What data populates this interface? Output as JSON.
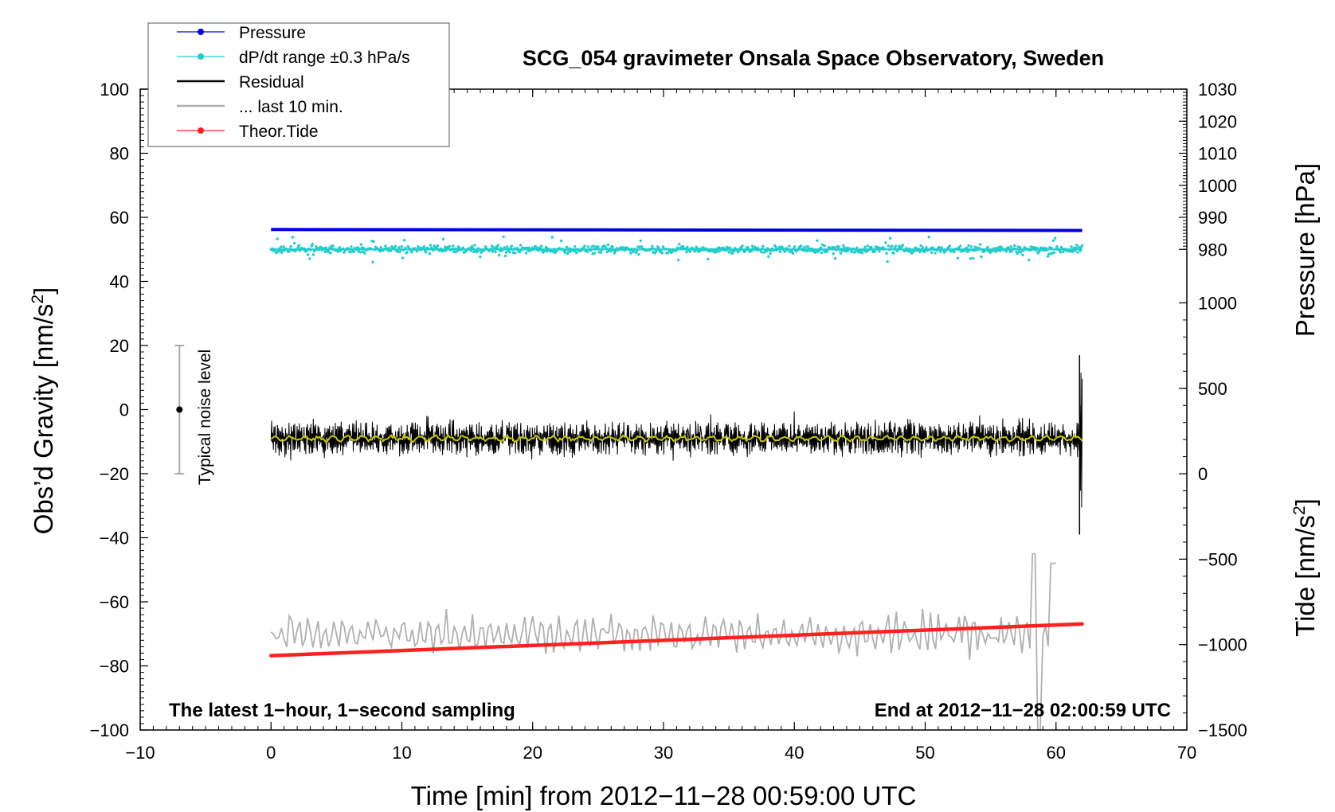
{
  "chart_data": {
    "type": "line",
    "title": "SCG_054 gravimeter Onsala Space Observatory, Sweden",
    "xlabel": "Time [min] from 2012−11−28 00:59:00 UTC",
    "ylabel_left": "Obs’d Gravity [nm/s",
    "ylabel_left_sup": "2",
    "ylabel_left_end": "]",
    "ylabel_right_top": "Pressure [hPa]",
    "ylabel_right_bottom": "Tide [nm/s",
    "ylabel_right_bottom_sup": "2",
    "ylabel_right_bottom_end": "]",
    "xlim": [
      -10,
      70
    ],
    "ylim_left": [
      -100,
      100
    ],
    "x_ticks": [
      "−10",
      "0",
      "10",
      "20",
      "30",
      "40",
      "50",
      "60",
      "70"
    ],
    "x_tick_values": [
      -10,
      0,
      10,
      20,
      30,
      40,
      50,
      60,
      70
    ],
    "y_left_ticks": [
      "100",
      "80",
      "60",
      "40",
      "20",
      "0",
      "−20",
      "−40",
      "−60",
      "−80",
      "−100"
    ],
    "y_left_tick_values": [
      100,
      80,
      60,
      40,
      20,
      0,
      -20,
      -40,
      -60,
      -80,
      -100
    ],
    "pressure_axis": {
      "ticks": [
        "1030",
        "1020",
        "1010",
        "1000",
        "990",
        "980"
      ],
      "values": [
        1030,
        1020,
        1010,
        1000,
        990,
        980
      ],
      "range": [
        980,
        1030
      ]
    },
    "tide_axis": {
      "ticks": [
        "1000",
        "500",
        "0",
        "−500",
        "−1000",
        "−1500"
      ],
      "values": [
        1000,
        500,
        0,
        -500,
        -1000,
        -1500
      ],
      "range": [
        -1500,
        1000
      ]
    },
    "legend": {
      "position": "top-left",
      "entries": [
        {
          "label": "Pressure",
          "color": "#0000dd",
          "marker": "dot"
        },
        {
          "label": "dP/dt range ±0.3 hPa/s",
          "color": "#22cccc",
          "marker": "dot"
        },
        {
          "label": "Residual",
          "color": "#000000",
          "marker": "line"
        },
        {
          "label": "... last 10 min.",
          "color": "#b0b0b0",
          "marker": "line"
        },
        {
          "label": "Theor.Tide",
          "color": "#ff2020",
          "marker": "dot"
        }
      ]
    },
    "series": [
      {
        "name": "Pressure",
        "color": "#0000dd",
        "x_range": [
          0,
          62
        ],
        "y_start": 56.2,
        "y_end": 55.9
      },
      {
        "name": "dP/dt range ±0.3 hPa/s",
        "color": "#22cccc",
        "x_range": [
          0,
          62
        ],
        "y_center": 50.0,
        "spread": 1.2,
        "outliers_max": 4
      },
      {
        "name": "Residual",
        "color": "#000000",
        "x_range": [
          0,
          62
        ],
        "y_center": -9.0,
        "amplitude": 5,
        "spike_x": 61.8,
        "spike_max": 17,
        "spike_min": -39
      },
      {
        "name": "Residual smoothed",
        "color": "#c8c800",
        "x_range": [
          0,
          62
        ],
        "y_center": -9.0
      },
      {
        "name": "... last 10 min.",
        "color": "#b0b0b0",
        "x_range": [
          0,
          60
        ],
        "y_center": -70,
        "amplitude": 4,
        "spike_x": 58.3,
        "spike_max": -45,
        "spike_min": -100
      },
      {
        "name": "Theor.Tide",
        "color": "#ff2020",
        "x_range": [
          0,
          62
        ],
        "y_start": -76.8,
        "y_end": -66.9
      }
    ],
    "noise_level": {
      "label": "Typical noise level",
      "x": -7,
      "center": 0,
      "upper": 20,
      "lower": -20
    },
    "annotations": {
      "bottom_left": "The latest 1−hour, 1−second sampling",
      "bottom_right": "End at 2012−11−28 02:00:59 UTC"
    }
  }
}
